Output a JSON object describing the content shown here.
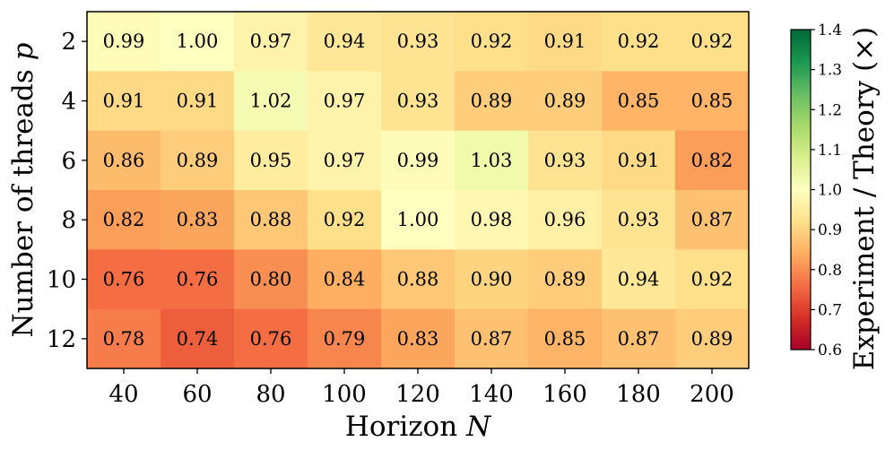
{
  "chart_data": {
    "type": "heatmap",
    "title": "",
    "xlabel": "Horizon",
    "xlabel_symbol": "N",
    "ylabel": "Number of threads",
    "ylabel_symbol": "p",
    "x_categories": [
      "40",
      "60",
      "80",
      "100",
      "120",
      "140",
      "160",
      "180",
      "200"
    ],
    "y_categories": [
      "2",
      "4",
      "6",
      "8",
      "10",
      "12"
    ],
    "values": [
      [
        0.99,
        1.0,
        0.97,
        0.94,
        0.93,
        0.92,
        0.91,
        0.92,
        0.92
      ],
      [
        0.91,
        0.91,
        1.02,
        0.97,
        0.93,
        0.89,
        0.89,
        0.85,
        0.85
      ],
      [
        0.86,
        0.89,
        0.95,
        0.97,
        0.99,
        1.03,
        0.93,
        0.91,
        0.82
      ],
      [
        0.82,
        0.83,
        0.88,
        0.92,
        1.0,
        0.98,
        0.96,
        0.93,
        0.87
      ],
      [
        0.76,
        0.76,
        0.8,
        0.84,
        0.88,
        0.9,
        0.89,
        0.94,
        0.92
      ],
      [
        0.78,
        0.74,
        0.76,
        0.79,
        0.83,
        0.87,
        0.85,
        0.87,
        0.89
      ]
    ],
    "colorbar": {
      "label": "Experiment / Theory (×)",
      "range": [
        0.6,
        1.4
      ],
      "ticks": [
        "0.6",
        "0.7",
        "0.8",
        "0.9",
        "1.0",
        "1.1",
        "1.2",
        "1.3",
        "1.4"
      ],
      "colormap": "RdYlGn",
      "colors_low_to_high": [
        "#a50026",
        "#d73027",
        "#f46d43",
        "#fdae61",
        "#fee08b",
        "#ffffbf",
        "#d9ef8b",
        "#a6d96a",
        "#66bd63",
        "#1a9850",
        "#006837"
      ]
    },
    "grid": false,
    "legend": "none"
  }
}
